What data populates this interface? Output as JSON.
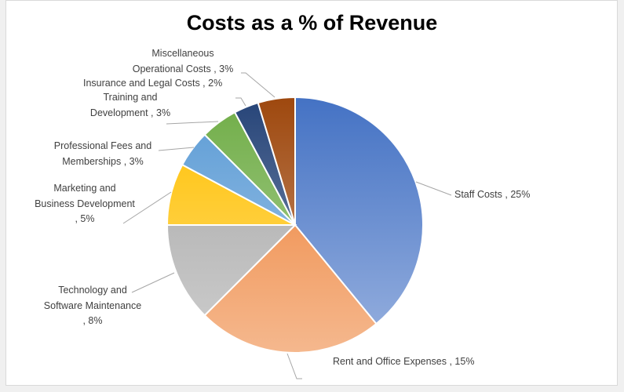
{
  "chart_data": {
    "type": "pie",
    "title": "Costs as a % of Revenue",
    "categories": [
      "Staff Costs",
      "Rent and Office Expenses",
      "Technology and Software Maintenance",
      "Marketing and Business Development",
      "Professional Fees and Memberships",
      "Training and Development",
      "Insurance and Legal Costs",
      "Miscellaneous Operational Costs"
    ],
    "values": [
      25,
      15,
      8,
      5,
      3,
      3,
      2,
      3
    ],
    "unit": "%",
    "colors": [
      "#4472C4",
      "#ED7D31",
      "#A5A5A5",
      "#FFC000",
      "#5B9BD5",
      "#70AD47",
      "#264478",
      "#9E480E"
    ],
    "data_labels": [
      [
        "Staff Costs , 25%"
      ],
      [
        "Rent and Office Expenses , 15%"
      ],
      [
        "Technology and",
        "Software Maintenance",
        ", 8%"
      ],
      [
        "Marketing and",
        "Business Development",
        ", 5%"
      ],
      [
        "Professional Fees and",
        "Memberships , 3%"
      ],
      [
        "Training and",
        "Development , 3%"
      ],
      [
        "Insurance and Legal Costs , 2%"
      ],
      [
        "Miscellaneous",
        "Operational Costs , 3%"
      ]
    ],
    "legend": "none"
  }
}
